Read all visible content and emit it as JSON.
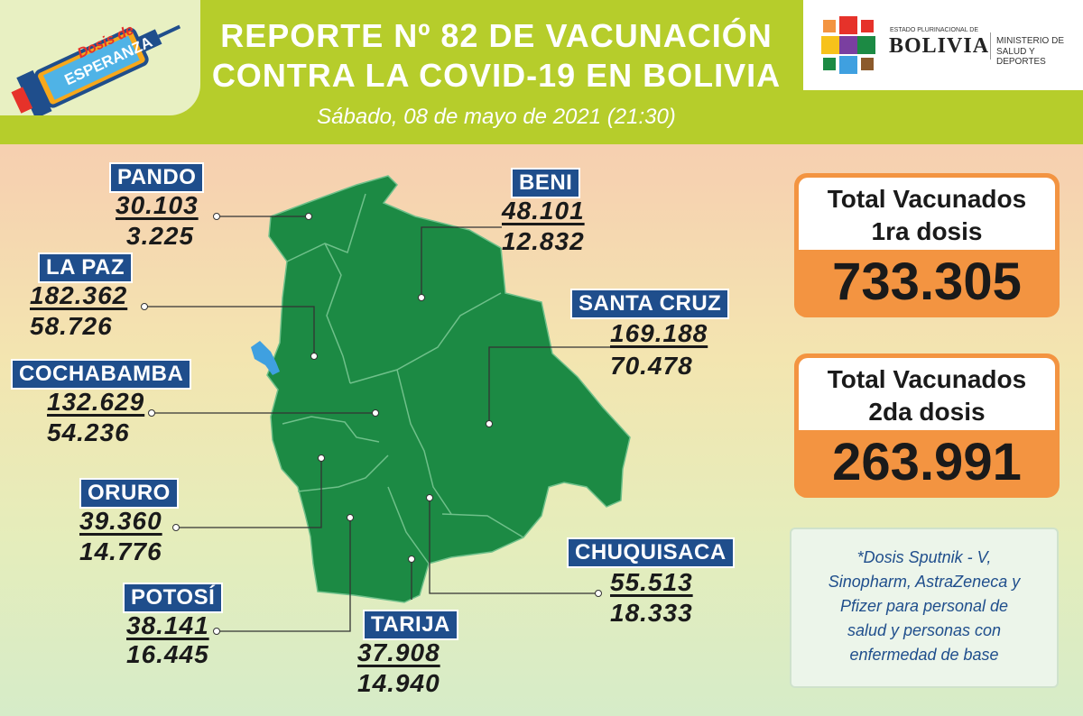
{
  "header": {
    "title_line1": "REPORTE Nº 82 DE VACUNACIÓN",
    "title_line2": "CONTRA LA COVID-19 EN BOLIVIA",
    "date": "Sábado, 08 de mayo de 2021 (21:30)",
    "logo_line1": "Dosis de",
    "logo_line2": "ESPERANZA",
    "gov_small": "ESTADO PLURINACIONAL DE",
    "gov_name": "BOLIVIA",
    "ministry_line1": "MINISTERIO DE",
    "ministry_line2": "SALUD Y DEPORTES"
  },
  "departments": [
    {
      "name": "PANDO",
      "dose1": "30.103",
      "dose2": "3.225"
    },
    {
      "name": "BENI",
      "dose1": "48.101",
      "dose2": "12.832"
    },
    {
      "name": "LA PAZ",
      "dose1": "182.362",
      "dose2": "58.726"
    },
    {
      "name": "SANTA CRUZ",
      "dose1": "169.188",
      "dose2": "70.478"
    },
    {
      "name": "COCHABAMBA",
      "dose1": "132.629",
      "dose2": "54.236"
    },
    {
      "name": "ORURO",
      "dose1": "39.360",
      "dose2": "14.776"
    },
    {
      "name": "CHUQUISACA",
      "dose1": "55.513",
      "dose2": "18.333"
    },
    {
      "name": "POTOSÍ",
      "dose1": "38.141",
      "dose2": "16.445"
    },
    {
      "name": "TARIJA",
      "dose1": "37.908",
      "dose2": "14.940"
    }
  ],
  "totals": {
    "first_label_line1": "Total Vacunados",
    "first_label_line2": "1ra dosis",
    "first_value": "733.305",
    "second_label_line1": "Total Vacunados",
    "second_label_line2": "2da dosis",
    "second_value": "263.991"
  },
  "note": {
    "line1": "*Dosis Sputnik - V,",
    "line2": "Sinopharm, AstraZeneca y",
    "line3": "Pfizer para personal de",
    "line4": "salud y personas con",
    "line5": "enfermedad de base"
  },
  "colors": {
    "header_green": "#b6cd2b",
    "map_green": "#1c8a44",
    "badge_blue": "#1f4e8c",
    "card_orange": "#f39441",
    "lake_blue": "#3fa0e0"
  }
}
